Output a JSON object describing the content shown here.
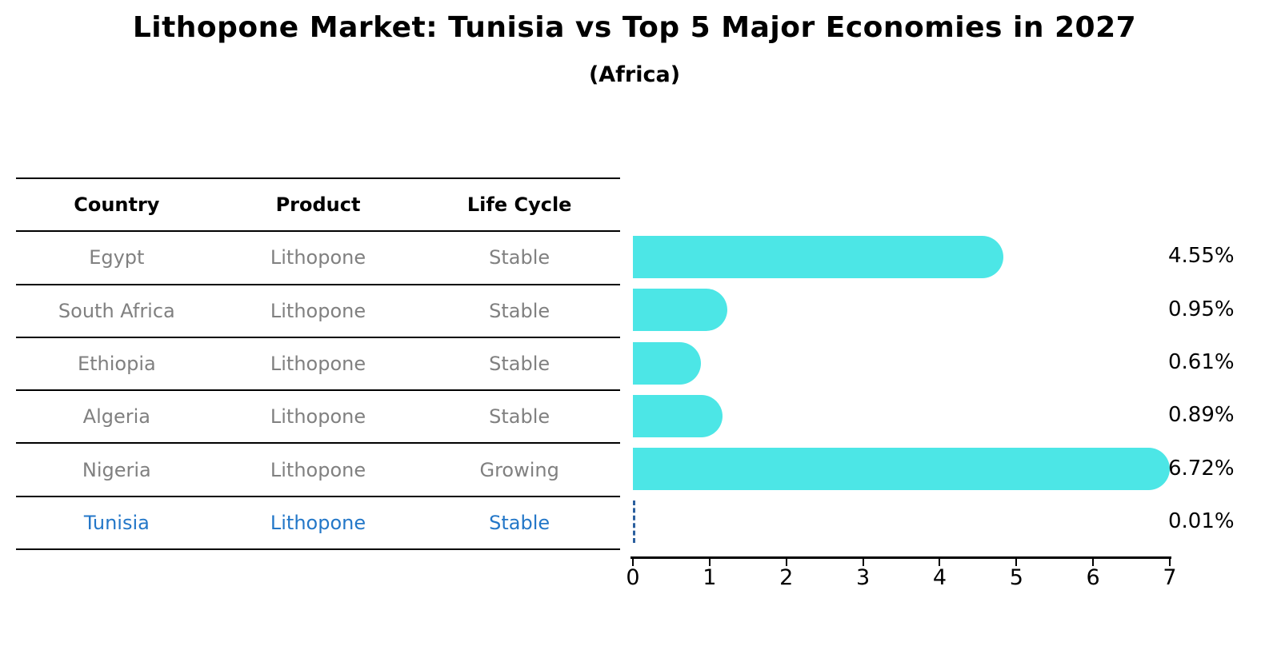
{
  "title": "Lithopone Market: Tunisia vs Top 5 Major Economies in 2027",
  "subtitle": "(Africa)",
  "table": {
    "headers": [
      "Country",
      "Product",
      "Life Cycle"
    ],
    "rows": [
      {
        "country": "Egypt",
        "product": "Lithopone",
        "life_cycle": "Stable",
        "highlight": false
      },
      {
        "country": "South Africa",
        "product": "Lithopone",
        "life_cycle": "Stable",
        "highlight": false
      },
      {
        "country": "Ethiopia",
        "product": "Lithopone",
        "life_cycle": "Stable",
        "highlight": false
      },
      {
        "country": "Algeria",
        "product": "Lithopone",
        "life_cycle": "Stable",
        "highlight": false
      },
      {
        "country": "Nigeria",
        "product": "Lithopone",
        "life_cycle": "Growing",
        "highlight": false
      },
      {
        "country": "Tunisia",
        "product": "Lithopone",
        "life_cycle": "Stable",
        "highlight": true
      }
    ]
  },
  "chart_data": {
    "type": "bar",
    "orientation": "horizontal",
    "title": "Lithopone Market: Tunisia vs Top 5 Major Economies in 2027",
    "subtitle": "(Africa)",
    "categories": [
      "Egypt",
      "South Africa",
      "Ethiopia",
      "Algeria",
      "Nigeria",
      "Tunisia"
    ],
    "values": [
      4.55,
      0.95,
      0.61,
      0.89,
      6.72,
      0.01
    ],
    "value_labels": [
      "4.55%",
      "0.95%",
      "0.61%",
      "0.89%",
      "6.72%",
      "0.01%"
    ],
    "xlim": [
      0,
      7
    ],
    "x_ticks": [
      "0",
      "1",
      "2",
      "3",
      "4",
      "5",
      "6",
      "7"
    ],
    "grid": false,
    "legend": false,
    "highlight_index": 5,
    "highlight_style": "dashed-outline-near-zero"
  },
  "colors": {
    "bar": "#4CE6E6",
    "highlight_text": "#2377C8",
    "highlight_dash": "#2B5F9E",
    "table_text": "#808080",
    "header_text": "#000000",
    "label_text": "#000000"
  }
}
